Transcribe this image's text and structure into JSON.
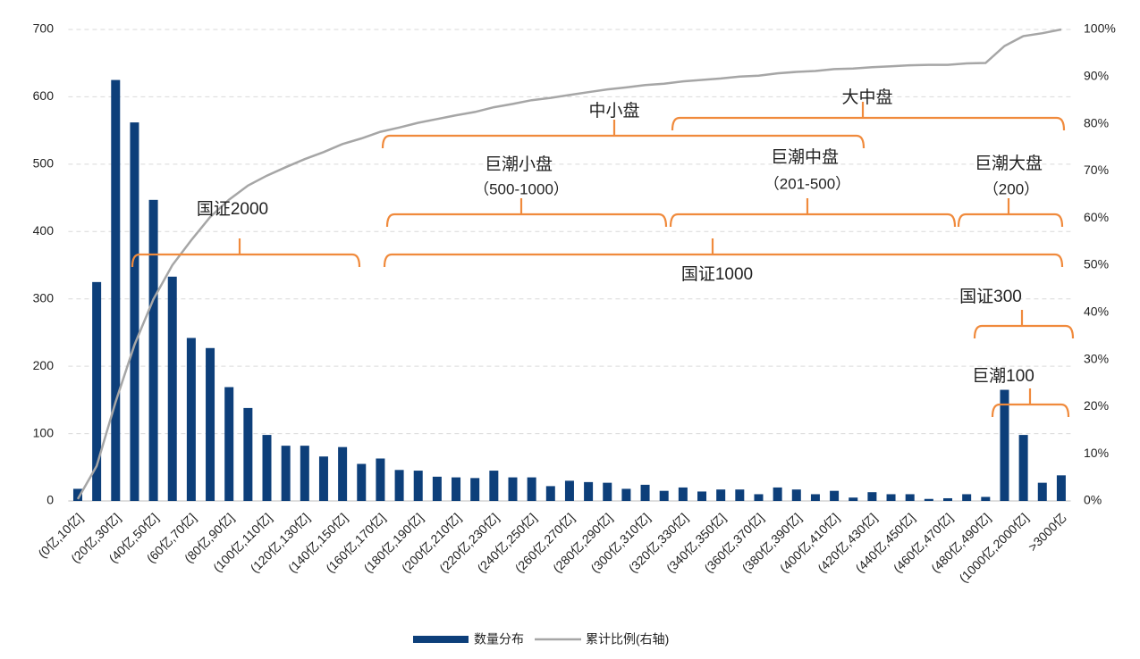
{
  "chart_data": {
    "type": "bar-line",
    "categories": [
      "(0亿,10亿]",
      null,
      "(20亿,30亿]",
      null,
      "(40亿,50亿]",
      null,
      "(60亿,70亿]",
      null,
      "(80亿,90亿]",
      null,
      "(100亿,110亿]",
      null,
      "(120亿,130亿]",
      null,
      "(140亿,150亿]",
      null,
      "(160亿,170亿]",
      null,
      "(180亿,190亿]",
      null,
      "(200亿,210亿]",
      null,
      "(220亿,230亿]",
      null,
      "(240亿,250亿]",
      null,
      "(260亿,270亿]",
      null,
      "(280亿,290亿]",
      null,
      "(300亿,310亿]",
      null,
      "(320亿,330亿]",
      null,
      "(340亿,350亿]",
      null,
      "(360亿,370亿]",
      null,
      "(380亿,390亿]",
      null,
      "(400亿,410亿]",
      null,
      "(420亿,430亿]",
      null,
      "(440亿,450亿]",
      null,
      "(460亿,470亿]",
      null,
      "(480亿,490亿]",
      null,
      "(1000亿,2000亿]",
      null,
      ">3000亿"
    ],
    "series": [
      {
        "name": "数量分布",
        "kind": "bar",
        "color": "#0d3f7a",
        "values": [
          18,
          325,
          625,
          562,
          447,
          333,
          242,
          227,
          169,
          138,
          98,
          82,
          82,
          66,
          80,
          55,
          63,
          46,
          45,
          36,
          35,
          34,
          45,
          35,
          35,
          22,
          30,
          28,
          27,
          18,
          24,
          15,
          20,
          14,
          17,
          17,
          10,
          20,
          17,
          10,
          15,
          5,
          13,
          10,
          10,
          3,
          4,
          10,
          6,
          165,
          98,
          27,
          38
        ]
      },
      {
        "name": "累计比例(右轴)",
        "kind": "line",
        "axis": "y2",
        "color": "#a6a6a6",
        "values": [
          0.4,
          7.4,
          21.0,
          33.1,
          42.8,
          50.0,
          55.3,
          60.2,
          63.9,
          66.9,
          69.0,
          70.8,
          72.5,
          74.0,
          75.7,
          76.9,
          78.3,
          79.2,
          80.2,
          81.0,
          81.8,
          82.5,
          83.5,
          84.2,
          85.0,
          85.5,
          86.1,
          86.7,
          87.3,
          87.7,
          88.2,
          88.5,
          89.0,
          89.3,
          89.6,
          90.0,
          90.2,
          90.7,
          91.0,
          91.2,
          91.6,
          91.7,
          92.0,
          92.2,
          92.4,
          92.5,
          92.5,
          92.8,
          92.9,
          96.5,
          98.6,
          99.2,
          100
        ]
      }
    ],
    "ylim": [
      0,
      700
    ],
    "yticks": [
      0,
      100,
      200,
      300,
      400,
      500,
      600,
      700
    ],
    "y2lim": [
      0,
      100
    ],
    "y2ticks": [
      {
        "value": 0,
        "label": "0%"
      },
      {
        "value": 10,
        "label": "10%"
      },
      {
        "value": 20,
        "label": "20%"
      },
      {
        "value": 30,
        "label": "30%"
      },
      {
        "value": 40,
        "label": "40%"
      },
      {
        "value": 50,
        "label": "50%"
      },
      {
        "value": 60,
        "label": "60%"
      },
      {
        "value": 70,
        "label": "70%"
      },
      {
        "value": 80,
        "label": "80%"
      },
      {
        "value": 90,
        "label": "90%"
      },
      {
        "value": 100,
        "label": "100%"
      }
    ],
    "grid": true,
    "legend": "bottom",
    "annotations": [
      {
        "text": "国证2000"
      },
      {
        "text": "中小盘"
      },
      {
        "text": "大中盘"
      },
      {
        "text": "巨潮小盘",
        "subtext": "（500-1000）"
      },
      {
        "text": "巨潮中盘",
        "subtext": "（201-500）"
      },
      {
        "text": "巨潮大盘",
        "subtext": "（200）"
      },
      {
        "text": "国证1000"
      },
      {
        "text": "国证300"
      },
      {
        "text": "巨潮100"
      }
    ]
  }
}
